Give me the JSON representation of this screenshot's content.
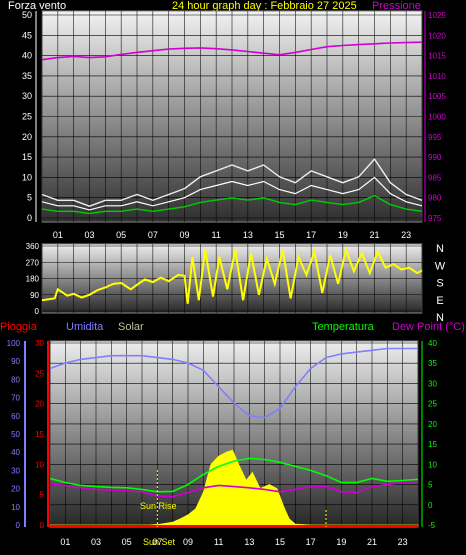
{
  "header": {
    "wind_label": "Forza vento",
    "title": "24 hour graph day : Febbraio 27 2025",
    "pressure_label": "Pressione"
  },
  "colors": {
    "wind": "#ffffff",
    "wind_avg": "#00cc00",
    "pressure": "#d000d0",
    "direction": "#ffff00",
    "rain": "#ff0000",
    "humidity": "#7f7fff",
    "solar": "#ffff00",
    "temperature": "#00ff00",
    "dewpoint": "#d000d0",
    "title": "#ffff00",
    "bottom_labels": "#ffff00"
  },
  "x_ticks": [
    "01",
    "03",
    "05",
    "07",
    "09",
    "11",
    "13",
    "15",
    "17",
    "19",
    "21",
    "23"
  ],
  "direction_labels": [
    "N",
    "W",
    "S",
    "E",
    "N"
  ],
  "bottom_header": {
    "rain_label": "Pioggia",
    "humidity_label": "Umidita",
    "solar_label": "Solar",
    "temperature_label": "Temperatura",
    "dewpoint_label": "Dew Point (°C)"
  },
  "sun_labels": {
    "rise": "Sun Rise",
    "set": "Sun Set"
  },
  "chart_data": [
    {
      "type": "line",
      "title": "24 hour graph day : Febbraio 27 2025",
      "x_range": [
        0,
        24
      ],
      "x_ticks": [
        "01",
        "03",
        "05",
        "07",
        "09",
        "11",
        "13",
        "15",
        "17",
        "19",
        "21",
        "23"
      ],
      "left_axis": {
        "label": "Forza vento",
        "range": [
          0,
          50
        ],
        "ticks": [
          0,
          5,
          10,
          15,
          20,
          25,
          30,
          35,
          40,
          45,
          50
        ]
      },
      "right_axis": {
        "label": "Pressione",
        "range": [
          975,
          1025
        ],
        "ticks": [
          975,
          980,
          985,
          990,
          995,
          1000,
          1005,
          1010,
          1015,
          1020,
          1025
        ]
      },
      "series": [
        {
          "name": "Forza vento",
          "axis": "left",
          "color": "#ffffff",
          "x": [
            0,
            1,
            2,
            3,
            4,
            5,
            6,
            7,
            8,
            9,
            10,
            11,
            12,
            13,
            14,
            15,
            16,
            17,
            18,
            19,
            20,
            21,
            22,
            23,
            24
          ],
          "y": [
            4,
            3,
            3,
            2,
            3,
            3,
            4,
            3,
            4,
            5,
            7,
            8,
            9,
            8,
            9,
            7,
            6,
            8,
            7,
            6,
            7,
            10,
            6,
            4,
            3
          ]
        },
        {
          "name": "Pressione",
          "axis": "right",
          "color": "#d000d0",
          "x": [
            0,
            1,
            2,
            3,
            4,
            5,
            6,
            7,
            8,
            9,
            10,
            11,
            12,
            13,
            14,
            15,
            16,
            17,
            18,
            19,
            20,
            21,
            22,
            23,
            24
          ],
          "y": [
            1014,
            1014.5,
            1014.8,
            1014.5,
            1014.7,
            1015.3,
            1015.8,
            1016.2,
            1016.6,
            1016.8,
            1016.9,
            1016.7,
            1016.4,
            1016,
            1015.6,
            1015.2,
            1015.8,
            1016.5,
            1017.2,
            1017.5,
            1017.7,
            1017.9,
            1018.1,
            1018.2,
            1018.3
          ]
        }
      ]
    },
    {
      "type": "line",
      "y_range": [
        0,
        360
      ],
      "y_ticks": [
        0,
        90,
        180,
        270,
        360
      ],
      "right_labels": [
        "N",
        "W",
        "S",
        "E",
        "N"
      ],
      "series": [
        {
          "name": "direction",
          "color": "#ffff00",
          "x": [
            0,
            0.8,
            1,
            1.6,
            2,
            2.5,
            3,
            3.5,
            4,
            4.5,
            5,
            5.6,
            6,
            6.5,
            7,
            7.5,
            8,
            8.6,
            9,
            9.2,
            9.5,
            9.9,
            10.3,
            10.8,
            11.2,
            11.7,
            12.2,
            12.7,
            13.2,
            13.7,
            14.2,
            14.7,
            15.2,
            15.7,
            16.2,
            16.7,
            17.2,
            17.7,
            18.2,
            18.7,
            19.2,
            19.7,
            20.2,
            20.7,
            21.2,
            21.7,
            22.2,
            22.7,
            23.2,
            23.7,
            24
          ],
          "y": [
            60,
            70,
            120,
            85,
            95,
            75,
            90,
            115,
            130,
            150,
            155,
            120,
            145,
            175,
            160,
            185,
            165,
            200,
            195,
            40,
            300,
            60,
            340,
            80,
            300,
            120,
            340,
            60,
            320,
            90,
            290,
            150,
            340,
            70,
            300,
            200,
            330,
            100,
            310,
            150,
            340,
            220,
            320,
            210,
            330,
            240,
            260,
            230,
            240,
            210,
            225
          ]
        }
      ]
    },
    {
      "type": "line",
      "x_range": [
        0,
        24
      ],
      "x_ticks": [
        "01",
        "03",
        "05",
        "07",
        "09",
        "11",
        "13",
        "15",
        "17",
        "19",
        "21",
        "23"
      ],
      "rain_axis": {
        "label": "Pioggia",
        "range": [
          0,
          30
        ],
        "ticks": [
          0,
          5,
          10,
          15,
          20,
          25,
          30
        ]
      },
      "humidity_axis": {
        "label": "Umidita",
        "range": [
          0,
          100
        ],
        "ticks": [
          0,
          10,
          20,
          30,
          40,
          50,
          60,
          70,
          80,
          90,
          100
        ]
      },
      "temperature_axis": {
        "label": "Temperatura",
        "range": [
          -5,
          40
        ],
        "ticks": [
          -5,
          0,
          5,
          10,
          15,
          20,
          25,
          30,
          35,
          40
        ]
      },
      "series": [
        {
          "name": "Umidita",
          "axis": "humidity",
          "color": "#7f7fff",
          "x": [
            0,
            1,
            2,
            3,
            4,
            5,
            6,
            7,
            8,
            9,
            10,
            11,
            12,
            13,
            14,
            15,
            16,
            17,
            18,
            19,
            20,
            21,
            22,
            23,
            24
          ],
          "y": [
            86,
            89,
            91,
            92,
            93,
            93,
            93,
            92,
            91,
            89,
            85,
            76,
            67,
            60,
            59,
            64,
            76,
            86,
            92,
            94,
            95,
            96,
            97,
            97,
            97
          ]
        },
        {
          "name": "Temperatura",
          "axis": "temperature",
          "color": "#00ff00",
          "x": [
            0,
            1,
            2,
            3,
            4,
            5,
            6,
            7,
            8,
            9,
            10,
            11,
            12,
            13,
            14,
            15,
            16,
            17,
            18,
            19,
            20,
            21,
            22,
            23,
            24
          ],
          "y": [
            6.5,
            5.5,
            4.8,
            4.5,
            4.3,
            4.2,
            3.8,
            3.2,
            3.3,
            5,
            7.5,
            9.5,
            10.8,
            11.5,
            11.2,
            10.5,
            9.5,
            8.5,
            7.2,
            5.5,
            5.5,
            6.5,
            5.8,
            6,
            6.3
          ]
        },
        {
          "name": "Dew Point (°C)",
          "axis": "temperature",
          "color": "#d000d0",
          "x": [
            0,
            1,
            2,
            3,
            4,
            5,
            6,
            7,
            8,
            9,
            10,
            11,
            12,
            13,
            14,
            15,
            16,
            17,
            18,
            19,
            20,
            21,
            22,
            23,
            24
          ],
          "y": [
            5.2,
            4.8,
            4.2,
            3.8,
            3.6,
            3.5,
            3.2,
            2.2,
            2.0,
            3,
            4.2,
            4.8,
            4.5,
            4.2,
            3.8,
            3.2,
            3.8,
            4.5,
            4.5,
            3.2,
            3.0,
            4.5,
            5.0,
            5.5,
            5.8
          ]
        },
        {
          "name": "Solar",
          "axis": "temperature",
          "color": "#ffff00",
          "x": [
            0,
            6.5,
            7.2,
            8,
            8.5,
            9,
            9.5,
            10,
            10.5,
            11,
            11.5,
            11.9,
            12.3,
            12.8,
            13.2,
            13.7,
            14.3,
            14.8,
            15.3,
            15.6,
            16,
            17,
            18,
            24
          ],
          "y": [
            -5,
            -5,
            -4.8,
            -4.3,
            -3.5,
            -2.5,
            -1,
            3,
            10,
            12,
            13,
            13.5,
            10,
            6,
            8,
            4,
            5,
            4,
            -1,
            -3.5,
            -4.8,
            -5,
            -5,
            -5
          ]
        }
      ],
      "sun_rise_hour": 7,
      "sun_set_hour": 18
    }
  ]
}
